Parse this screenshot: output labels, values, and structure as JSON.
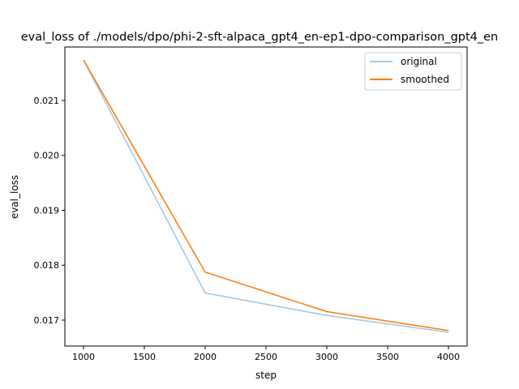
{
  "chart_data": {
    "type": "line",
    "title": "eval_loss of ./models/dpo/phi-2-sft-alpaca_gpt4_en-ep1-dpo-comparison_gpt4_en",
    "xlabel": "step",
    "ylabel": "eval_loss",
    "xlim": [
      847,
      4153
    ],
    "ylim": [
      0.016528,
      0.021973
    ],
    "xticks": [
      1000,
      1500,
      2000,
      2500,
      3000,
      3500,
      4000
    ],
    "xtick_labels": [
      "1000",
      "1500",
      "2000",
      "2500",
      "3000",
      "3500",
      "4000"
    ],
    "yticks": [
      0.017,
      0.018,
      0.019,
      0.02,
      0.021
    ],
    "ytick_labels": [
      "0.017",
      "0.018",
      "0.019",
      "0.020",
      "0.021"
    ],
    "grid": false,
    "legend_position": "top-right",
    "x": [
      1000,
      2000,
      3000,
      4000
    ],
    "series": [
      {
        "name": "original",
        "color": "#a6c8e3",
        "values": [
          0.021737,
          0.017495,
          0.017085,
          0.016779
        ]
      },
      {
        "name": "smoothed",
        "color": "#ff7f0e",
        "values": [
          0.021737,
          0.017875,
          0.017155,
          0.01681
        ]
      }
    ]
  }
}
